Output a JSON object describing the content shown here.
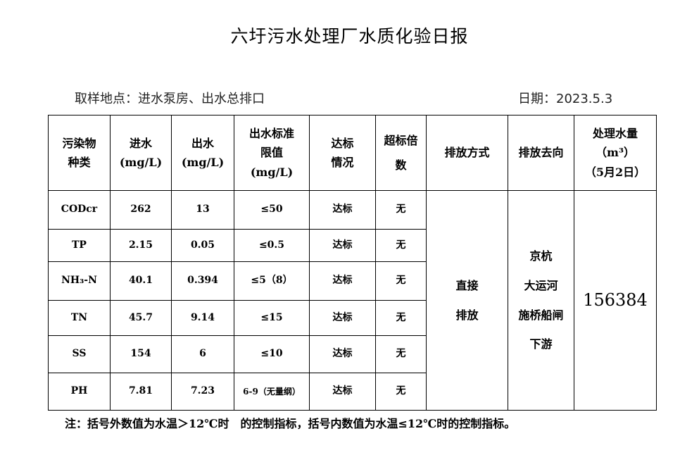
{
  "title": "六圩污水处理厂水质化验日报",
  "location": "取样地点：进水泵房、出水总排口",
  "date": "日期：2023.5.3",
  "headers": {
    "pollutant": [
      "污染物",
      "种类"
    ],
    "inflow": [
      "进水",
      "(mg/L)"
    ],
    "outflow": [
      "出水",
      "(mg/L)"
    ],
    "limit": [
      "出水标准",
      "限值",
      "(mg/L)"
    ],
    "status": [
      "达标",
      "情况"
    ],
    "exceed": [
      "超标倍",
      "数"
    ],
    "method": "排放方式",
    "destination": "排放去向",
    "volume": [
      "处理水量",
      "（m³）",
      "（5月2日）"
    ]
  },
  "rows": [
    {
      "name": "CODcr",
      "in": "262",
      "out": "13",
      "limit": "≤50",
      "status": "达标",
      "exceed": "无"
    },
    {
      "name": "TP",
      "in": "2.15",
      "out": "0.05",
      "limit": "≤0.5",
      "status": "达标",
      "exceed": "无"
    },
    {
      "name": "NH₃-N",
      "in": "40.1",
      "out": "0.394",
      "limit": "≤5（8）",
      "status": "达标",
      "exceed": "无"
    },
    {
      "name": "TN",
      "in": "45.7",
      "out": "9.14",
      "limit": "≤15",
      "status": "达标",
      "exceed": "无"
    },
    {
      "name": "SS",
      "in": "154",
      "out": "6",
      "limit": "≤10",
      "status": "达标",
      "exceed": "无"
    },
    {
      "name": "PH",
      "in": "7.81",
      "out": "7.23",
      "limit": "6-9（无量纲）",
      "status": "达标",
      "exceed": "无"
    }
  ],
  "method": [
    "直接",
    "排放"
  ],
  "destination": [
    "京杭",
    "大运河",
    "施桥船闸",
    "下游"
  ],
  "volume": "156384",
  "note": "注：括号外数值为水温＞12℃时　的控制指标，括号内数值为水温≤12℃时的控制指标。"
}
